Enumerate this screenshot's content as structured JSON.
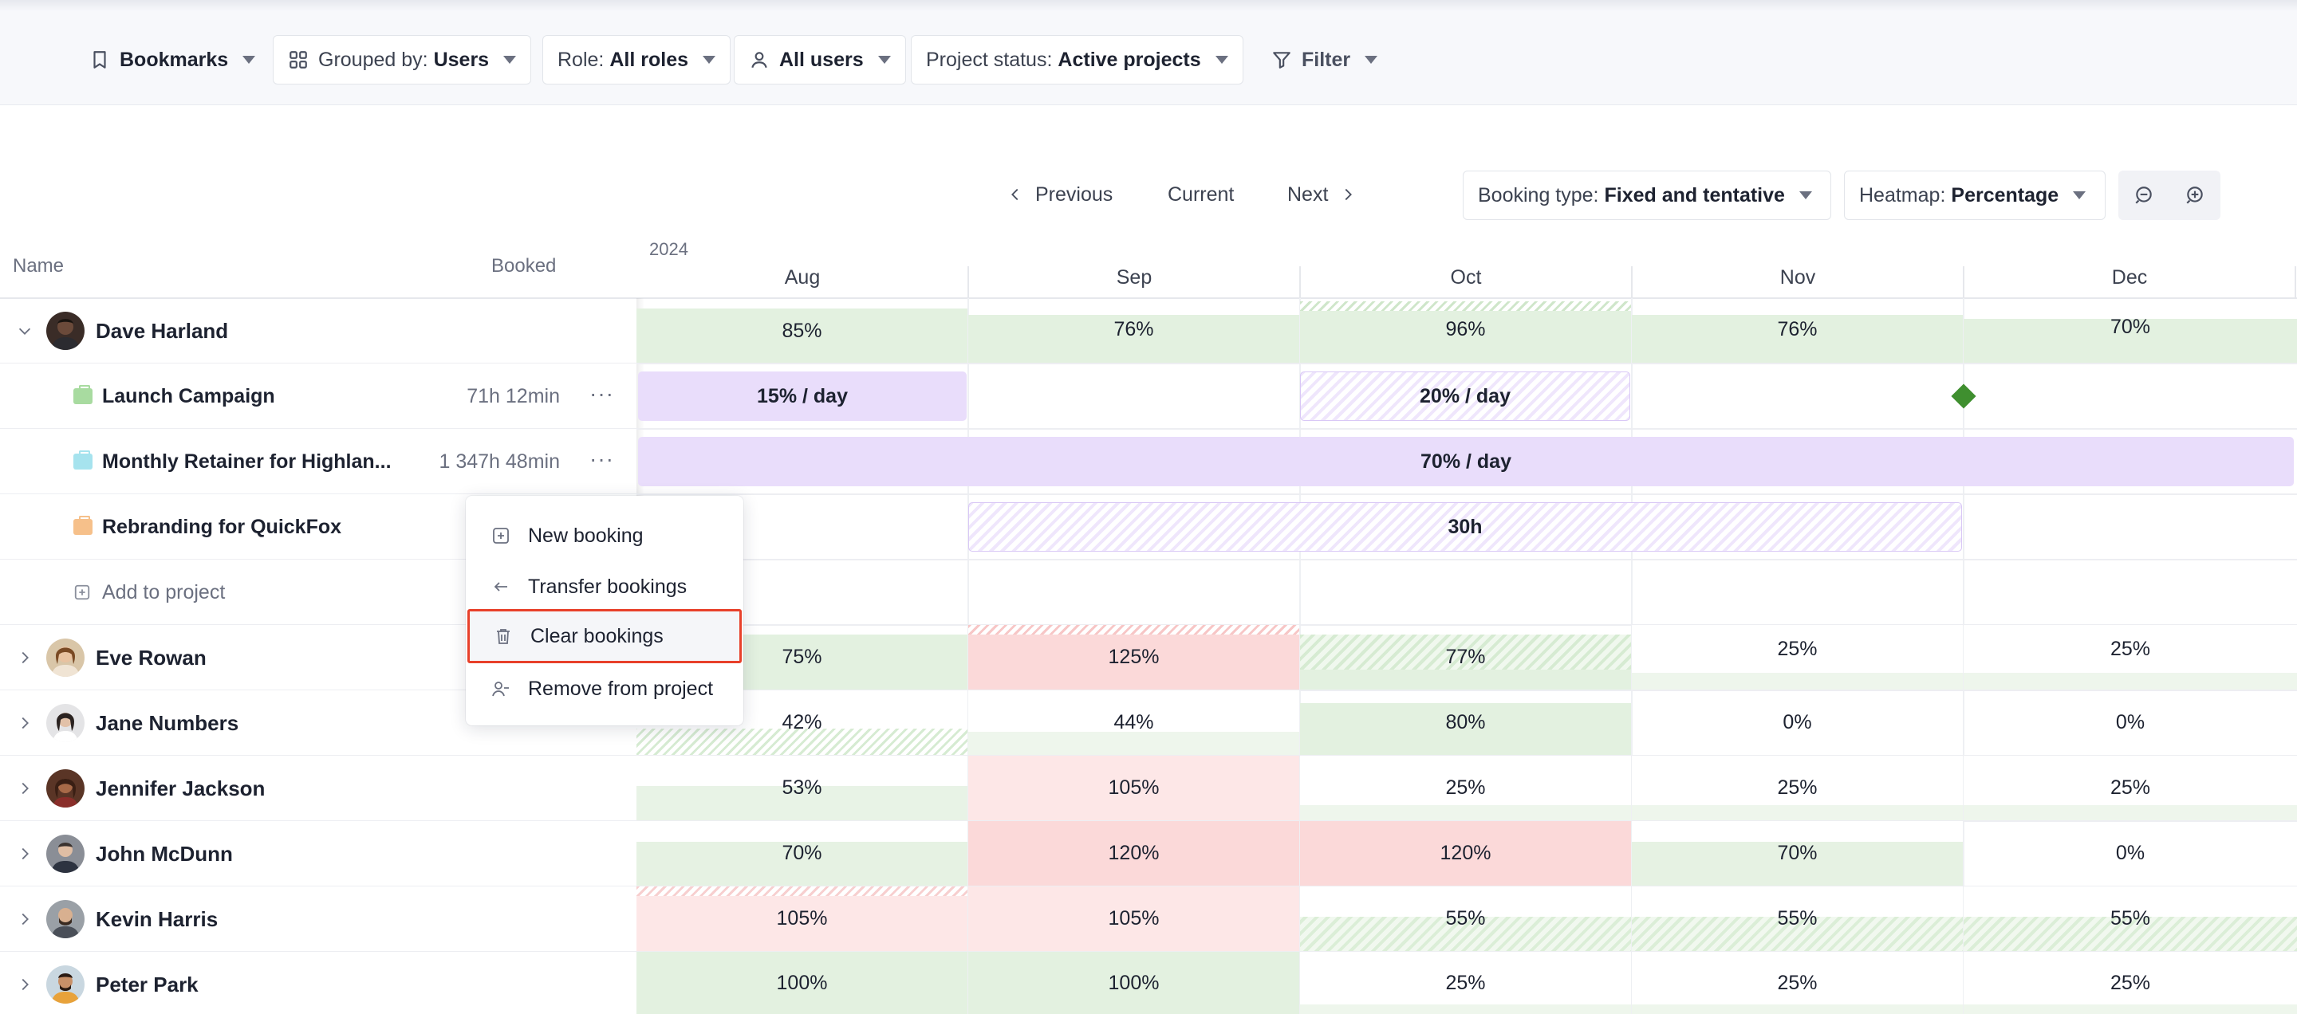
{
  "filters": {
    "bookmarks": {
      "label": "Bookmarks"
    },
    "grouped_by": {
      "label": "Grouped by:",
      "value": "Users"
    },
    "role": {
      "label": "Role:",
      "value": "All roles"
    },
    "users": {
      "value": "All users"
    },
    "project_status": {
      "label": "Project status:",
      "value": "Active projects"
    },
    "filter": {
      "label": "Filter"
    }
  },
  "nav": {
    "previous": "Previous",
    "current": "Current",
    "next": "Next"
  },
  "booking_type": {
    "label": "Booking type:",
    "value": "Fixed and tentative"
  },
  "heatmap": {
    "label": "Heatmap:",
    "value": "Percentage"
  },
  "columns": {
    "name": "Name",
    "booked": "Booked"
  },
  "timeline": {
    "year": "2024",
    "months": [
      "Aug",
      "Sep",
      "Oct",
      "Nov",
      "Dec"
    ]
  },
  "expanded_user": {
    "name": "Dave Harland",
    "heat": [
      "85%",
      "76%",
      "96%",
      "76%",
      "70%"
    ],
    "projects": [
      {
        "name": "Launch Campaign",
        "booked": "71h 12min",
        "color": "#a8dba0"
      },
      {
        "name": "Monthly Retainer for Highlan...",
        "booked": "1 347h 48min",
        "color": "#a6e3ee"
      },
      {
        "name": "Rebranding for QuickFox",
        "booked": "",
        "color": "#f6c08a"
      }
    ],
    "add_to_project": "Add to project"
  },
  "bookings": {
    "launch_aug": "15% / day",
    "launch_oct": "20% / day",
    "retainer": "70% / day",
    "rebranding": "30h"
  },
  "users": [
    {
      "name": "Eve Rowan",
      "heat": [
        "75%",
        "125%",
        "77%",
        "25%",
        "25%"
      ]
    },
    {
      "name": "Jane Numbers",
      "heat": [
        "42%",
        "44%",
        "80%",
        "0%",
        "0%"
      ]
    },
    {
      "name": "Jennifer Jackson",
      "heat": [
        "53%",
        "105%",
        "25%",
        "25%",
        "25%"
      ]
    },
    {
      "name": "John McDunn",
      "heat": [
        "70%",
        "120%",
        "120%",
        "70%",
        "0%"
      ]
    },
    {
      "name": "Kevin Harris",
      "heat": [
        "105%",
        "105%",
        "55%",
        "55%",
        "55%"
      ]
    },
    {
      "name": "Peter Park",
      "heat": [
        "100%",
        "100%",
        "25%",
        "25%",
        "25%"
      ]
    }
  ],
  "context_menu": {
    "items": [
      "New booking",
      "Transfer bookings",
      "Clear bookings",
      "Remove from project"
    ],
    "highlighted": "Clear bookings"
  },
  "colors": {
    "accent_highlight": "#e8402a",
    "over_capacity": "#fbd9d9",
    "under_capacity": "#e3f1e0",
    "booking_bar": "#e9ddfb",
    "milestone": "#3f8f2f"
  }
}
